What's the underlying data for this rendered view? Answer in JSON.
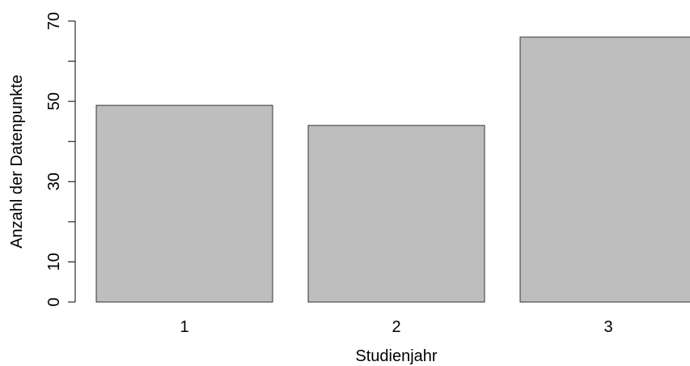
{
  "chart_data": {
    "type": "bar",
    "categories": [
      "1",
      "2",
      "3"
    ],
    "values": [
      49,
      44,
      66
    ],
    "title": "",
    "xlabel": "Studienjahr",
    "ylabel": "Anzahl der Datenpunkte",
    "ylim": [
      0,
      70
    ],
    "yticks": [
      0,
      10,
      30,
      50,
      70
    ],
    "grid": false,
    "bar_color": "#bebebe",
    "bar_border_color": "#333333"
  }
}
